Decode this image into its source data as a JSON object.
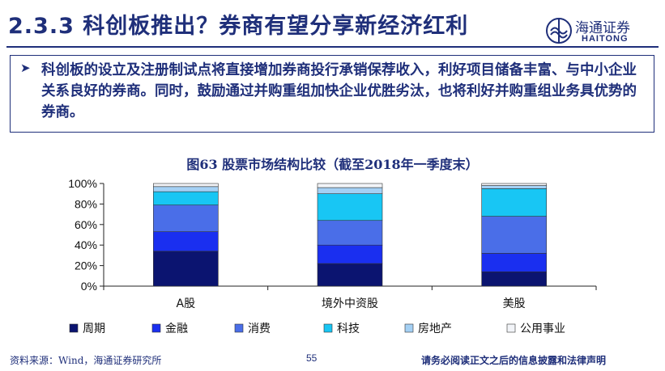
{
  "header": {
    "title": "2.3.3 科创板推出？券商有望分享新经济红利",
    "logo_name": "海通证券",
    "logo_sub": "HAITONG"
  },
  "note": {
    "text": "科创板的设立及注册制试点将直接增加券商投行承销保荐收入，利好项目储备丰富、与中小企业关系良好的券商。同时，鼓励通过并购重组加快企业优胜劣汰，也将利好并购重组业务具优势的券商。"
  },
  "chart_data": {
    "type": "bar",
    "stacked": true,
    "title": "图63  股票市场结构比较（截至2018年一季度末）",
    "xlabel": "",
    "ylabel": "",
    "ylim": [
      0,
      100
    ],
    "y_unit": "%",
    "y_ticks": [
      "0%",
      "20%",
      "40%",
      "60%",
      "80%",
      "100%"
    ],
    "grid": false,
    "legend_position": "bottom",
    "categories": [
      "A股",
      "境外中资股",
      "美股"
    ],
    "series": [
      {
        "name": "周期",
        "color": "#0b1470",
        "values": [
          34,
          22,
          14
        ]
      },
      {
        "name": "金融",
        "color": "#1a2ff0",
        "values": [
          19,
          18,
          18
        ]
      },
      {
        "name": "消费",
        "color": "#4a6ee8",
        "values": [
          26,
          24,
          36
        ]
      },
      {
        "name": "科技",
        "color": "#18c6f4",
        "values": [
          13,
          26,
          27
        ]
      },
      {
        "name": "房地产",
        "color": "#a4d0f4",
        "values": [
          5,
          6,
          3
        ]
      },
      {
        "name": "公用事业",
        "color": "#f2f4f8",
        "values": [
          3,
          4,
          2
        ]
      }
    ]
  },
  "footer": {
    "source": "资料来源：Wind，海通证券研究所",
    "page": "55",
    "disclaimer": "请务必阅读正文之后的信息披露和法律声明"
  }
}
